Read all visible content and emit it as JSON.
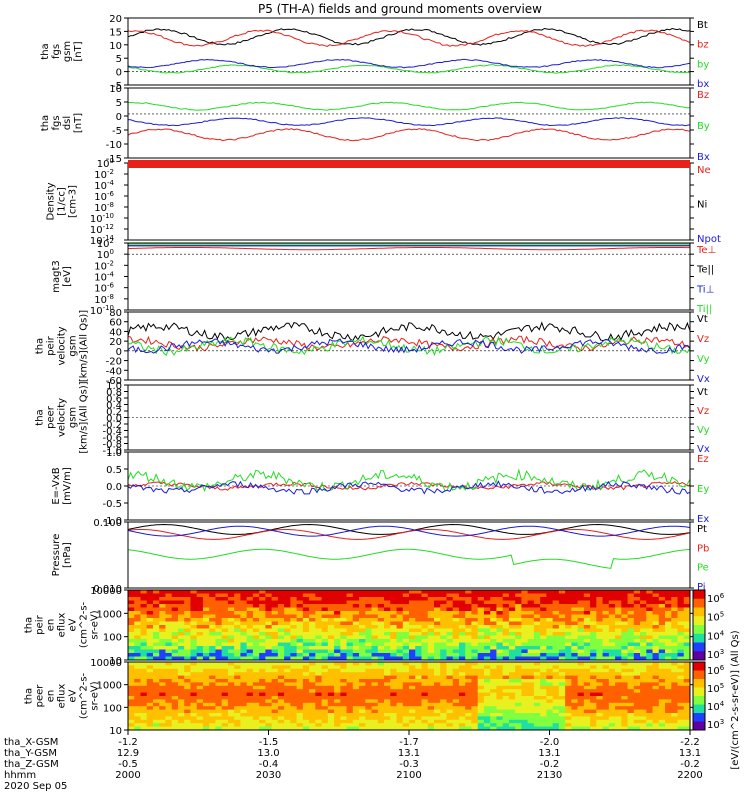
{
  "title": "P5 (TH-A) fields and ground moments overview",
  "colors": {
    "black": "#000000",
    "red": "#e8201a",
    "green": "#22dd22",
    "blue": "#1b1bd8"
  },
  "chart_data": [
    {
      "type": "line",
      "id": "fgs_gsm",
      "ylabel_lines": [
        "tha",
        "fgs",
        "gsm",
        "[nT]"
      ],
      "ylim": [
        -5,
        20
      ],
      "ticks": [
        "20",
        "15",
        "10",
        "5",
        "0",
        "-5"
      ],
      "series": [
        {
          "name": "Bt",
          "color": "black",
          "base": 13,
          "amp": 4
        },
        {
          "name": "bz",
          "color": "red",
          "base": 12.5,
          "amp": 4
        },
        {
          "name": "by",
          "color": "green",
          "base": 1,
          "amp": 2
        },
        {
          "name": "bx",
          "color": "blue",
          "base": 3,
          "amp": 2
        }
      ]
    },
    {
      "type": "line",
      "id": "fgs_dsl",
      "ylabel_lines": [
        "tha",
        "fgs",
        "dsl",
        "[nT]"
      ],
      "ylim": [
        -17,
        10
      ],
      "ticks": [
        "10",
        "5",
        "0",
        "-5",
        "-10",
        "-15"
      ],
      "series": [
        {
          "name": "Bz",
          "color": "red",
          "base": -8,
          "amp": 3
        },
        {
          "name": "By",
          "color": "green",
          "base": 3,
          "amp": 2
        },
        {
          "name": "Bx",
          "color": "blue",
          "base": -3,
          "amp": 2
        }
      ]
    },
    {
      "type": "line",
      "id": "density",
      "ylabel_lines": [
        "Density",
        "[1/cc]",
        "[cm-3]"
      ],
      "ylim": [
        -14,
        0
      ],
      "ticks": [
        "10^0",
        "10^-2",
        "10^-4",
        "10^-6",
        "10^-8",
        "10^-10",
        "10^-12",
        "10^-14"
      ],
      "log": true,
      "series": [
        {
          "name": "Ne",
          "color": "red"
        },
        {
          "name": "Ni",
          "color": "black"
        },
        {
          "name": "Npot",
          "color": "blue"
        }
      ]
    },
    {
      "type": "line",
      "id": "temp",
      "ylabel_lines": [
        "magt3",
        "[eV]"
      ],
      "ylim": [
        -10,
        2
      ],
      "ticks": [
        "10^2",
        "10^0",
        "10^-2",
        "10^-4",
        "10^-6",
        "10^-8",
        "10^-10"
      ],
      "log": true,
      "series": [
        {
          "name": "Te⊥",
          "color": "red"
        },
        {
          "name": "Te||",
          "color": "black"
        },
        {
          "name": "Ti⊥",
          "color": "blue"
        },
        {
          "name": "Ti||",
          "color": "green"
        }
      ]
    },
    {
      "type": "line",
      "id": "peir_vel",
      "ylabel_lines": [
        "tha",
        "peir",
        "velocity",
        "gsm",
        "[km/s](All Qs)]"
      ],
      "ylim": [
        -60,
        80
      ],
      "ticks": [
        "80",
        "60",
        "40",
        "20",
        "0",
        "-20",
        "-40",
        "-60"
      ],
      "series": [
        {
          "name": "Vt",
          "color": "black",
          "base": 40,
          "amp": 15
        },
        {
          "name": "Vz",
          "color": "red",
          "base": 15,
          "amp": 12
        },
        {
          "name": "Vy",
          "color": "green",
          "base": 10,
          "amp": 15
        },
        {
          "name": "Vx",
          "color": "blue",
          "base": 10,
          "amp": 12
        }
      ]
    },
    {
      "type": "line",
      "id": "peer_vel",
      "ylabel_lines": [
        "tha",
        "peer",
        "velocity",
        "gsm",
        "[km/s](All Qs)]"
      ],
      "ylim": [
        -1,
        1
      ],
      "ticks": [
        "1.0",
        "0.8",
        "0.6",
        "0.4",
        "0.2",
        "0.0",
        "-0.2",
        "-0.4",
        "-0.6",
        "-0.8",
        "-1.0"
      ],
      "series": [
        {
          "name": "Vt",
          "color": "black"
        },
        {
          "name": "Vz",
          "color": "red"
        },
        {
          "name": "Vy",
          "color": "green"
        },
        {
          "name": "Vx",
          "color": "blue"
        }
      ]
    },
    {
      "type": "line",
      "id": "efield",
      "ylabel_lines": [
        "E=-VxB",
        "[mV/m]"
      ],
      "ylim": [
        -1,
        1
      ],
      "ticks": [
        "1.0",
        "0.5",
        "0.0",
        "-0.5",
        "-1.0"
      ],
      "series": [
        {
          "name": "Ez",
          "color": "red",
          "base": 0,
          "amp": 0.1
        },
        {
          "name": "Ey",
          "color": "green",
          "base": 0.15,
          "amp": 0.25
        },
        {
          "name": "Ex",
          "color": "blue",
          "base": -0.05,
          "amp": 0.15
        }
      ]
    },
    {
      "type": "line",
      "id": "pressure",
      "ylabel_lines": [
        "Pressure",
        "[nPa]"
      ],
      "ylim": [
        0.003,
        0.3
      ],
      "ticks": [
        "0.100",
        "0.010"
      ],
      "log": true,
      "series": [
        {
          "name": "Pt",
          "color": "black"
        },
        {
          "name": "Pb",
          "color": "red"
        },
        {
          "name": "Pe",
          "color": "green"
        },
        {
          "name": "Pi",
          "color": "blue"
        }
      ]
    },
    {
      "type": "heatmap",
      "id": "peir_eflux",
      "ylabel_lines": [
        "tha",
        "peir",
        "en",
        "eflux",
        "eV",
        "(cm^2-s-",
        "sr-eV)"
      ],
      "ticks": [
        "10000",
        "1000",
        "100",
        "10"
      ],
      "colorbar_ticks": [
        "10^6",
        "10^5",
        "10^4",
        "10^3"
      ]
    },
    {
      "type": "heatmap",
      "id": "peer_eflux",
      "ylabel_lines": [
        "tha",
        "peer",
        "en",
        "eflux",
        "eV",
        "(cm^2-s-",
        "sr-eV)"
      ],
      "ticks": [
        "10000",
        "1000",
        "100",
        "10"
      ],
      "colorbar_ticks": [
        "10^6",
        "10^5",
        "10^4",
        "10^3"
      ]
    }
  ],
  "colorbar_label": "[eV/(cm^2-s-sr-eV)] (All Qs)",
  "xaxis": {
    "rows": [
      {
        "label": "tha_X-GSM",
        "values": [
          "-1.2",
          "-1.5",
          "-1.7",
          "-2.0",
          "-2.2"
        ]
      },
      {
        "label": "tha_Y-GSM",
        "values": [
          "12.9",
          "13.0",
          "13.1",
          "13.1",
          "13.1"
        ]
      },
      {
        "label": "tha_Z-GSM",
        "values": [
          "-0.5",
          "-0.4",
          "-0.3",
          "-0.2",
          "-0.2"
        ]
      },
      {
        "label": "hhmm",
        "values": [
          "2000",
          "2030",
          "2100",
          "2130",
          "2200"
        ]
      }
    ],
    "date": "2020 Sep 05"
  }
}
